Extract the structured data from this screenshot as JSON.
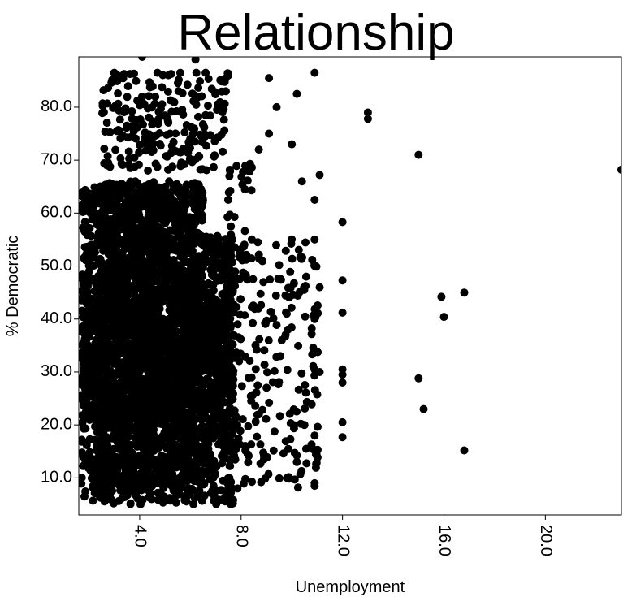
{
  "chart_data": {
    "type": "scatter",
    "title": "Relationship",
    "xlabel": "Unemployment",
    "ylabel": "% Democratic",
    "xlim": [
      1.6,
      23.0
    ],
    "ylim": [
      3.0,
      89.5
    ],
    "x_ticks": [
      4.0,
      8.0,
      12.0,
      16.0,
      20.0
    ],
    "x_tick_labels": [
      "4.0",
      "8.0",
      "12.0",
      "16.0",
      "20.0"
    ],
    "y_ticks": [
      10.0,
      20.0,
      30.0,
      40.0,
      50.0,
      60.0,
      70.0,
      80.0
    ],
    "y_tick_labels": [
      "10.0",
      "20.0",
      "30.0",
      "40.0",
      "50.0",
      "60.0",
      "70.0",
      "80.0"
    ],
    "grid": false,
    "legend": "none",
    "marker_color": "#000000",
    "point_summary": "Dense cloud of several thousand county observations concentrated at unemployment 2–8% with % Democratic mostly 5–70; sparse points extend to ~11%; isolated outliers listed in series.",
    "series": [
      {
        "points": [
          [
            13.0,
            79.0
          ],
          [
            13.0,
            77.8
          ],
          [
            15.0,
            71.0
          ],
          [
            23.0,
            68.2
          ],
          [
            16.8,
            45.0
          ],
          [
            15.9,
            44.2
          ],
          [
            16.0,
            40.4
          ],
          [
            15.0,
            28.8
          ],
          [
            15.2,
            23.0
          ],
          [
            16.8,
            15.2
          ],
          [
            12.0,
            58.3
          ],
          [
            12.0,
            47.3
          ],
          [
            12.0,
            41.2
          ],
          [
            12.0,
            30.5
          ],
          [
            12.0,
            29.5
          ],
          [
            12.0,
            28.0
          ],
          [
            12.0,
            20.5
          ],
          [
            12.0,
            17.7
          ],
          [
            10.9,
            86.5
          ],
          [
            10.2,
            82.5
          ],
          [
            10.0,
            73.0
          ],
          [
            10.4,
            66.0
          ],
          [
            11.1,
            67.2
          ],
          [
            10.9,
            62.5
          ],
          [
            10.9,
            55.0
          ],
          [
            10.9,
            50.0
          ],
          [
            11.1,
            46.0
          ],
          [
            10.9,
            40.0
          ],
          [
            11.1,
            30.0
          ],
          [
            10.9,
            9.0
          ],
          [
            10.9,
            8.5
          ],
          [
            10.5,
            20.0
          ],
          [
            10.9,
            18.0
          ],
          [
            10.2,
            13.0
          ],
          [
            9.1,
            85.5
          ],
          [
            9.4,
            80.0
          ],
          [
            9.1,
            75.0
          ],
          [
            8.7,
            72.0
          ],
          [
            4.1,
            89.5
          ],
          [
            6.2,
            89.0
          ],
          [
            3.0,
            86.5
          ],
          [
            4.7,
            86.5
          ],
          [
            5.6,
            86.5
          ],
          [
            6.6,
            86.5
          ],
          [
            7.4,
            83.0
          ]
        ]
      }
    ]
  }
}
